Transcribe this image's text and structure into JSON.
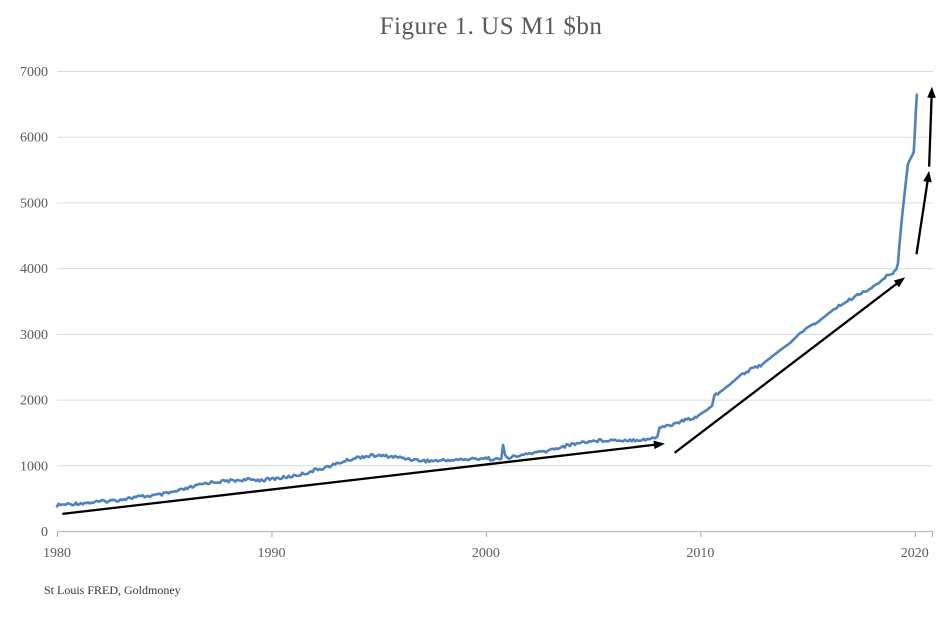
{
  "header": {
    "title": "Figure 1. US M1 $bn"
  },
  "footer": {
    "source": "St Louis FRED, Goldmoney"
  },
  "chart_data": {
    "type": "line",
    "title": "Figure 1. US M1 $bn",
    "source": "St Louis FRED, Goldmoney",
    "xlabel": "",
    "ylabel": "",
    "xlim": [
      1980,
      2020.85
    ],
    "ylim": [
      0,
      7000
    ],
    "x_ticks": [
      "1980",
      "1990",
      "2000",
      "2010",
      "2020"
    ],
    "x_tick_years": [
      1980,
      1990,
      2000,
      2010,
      2020
    ],
    "y_ticks": [
      "0",
      "1000",
      "2000",
      "3000",
      "4000",
      "5000",
      "6000",
      "7000"
    ],
    "y_tick_values": [
      0,
      1000,
      2000,
      3000,
      4000,
      5000,
      6000,
      7000
    ],
    "grid": "horizontal-only",
    "legend": "none",
    "colors": {
      "line": "#4f81bd",
      "arrow": "#000000",
      "grid": "#dcdcdc",
      "axis": "#bfbfbf",
      "tick": "#a6a6a6",
      "labels": "#595959",
      "title": "#595959",
      "source": "#333333"
    },
    "series": [
      {
        "name": "US M1 $bn",
        "color": "#4f81bd",
        "points": [
          [
            1980.0,
            393
          ],
          [
            1980.4,
            403
          ],
          [
            1980.8,
            415
          ],
          [
            1981.2,
            425
          ],
          [
            1981.6,
            433
          ],
          [
            1982.0,
            447
          ],
          [
            1982.4,
            458
          ],
          [
            1982.8,
            470
          ],
          [
            1983.2,
            492
          ],
          [
            1983.6,
            513
          ],
          [
            1984.0,
            525
          ],
          [
            1984.4,
            536
          ],
          [
            1984.8,
            550
          ],
          [
            1985.2,
            575
          ],
          [
            1985.6,
            605
          ],
          [
            1986.0,
            640
          ],
          [
            1986.4,
            678
          ],
          [
            1986.8,
            715
          ],
          [
            1987.2,
            742
          ],
          [
            1987.6,
            752
          ],
          [
            1988.0,
            762
          ],
          [
            1988.4,
            772
          ],
          [
            1988.8,
            780
          ],
          [
            1989.2,
            780
          ],
          [
            1989.6,
            776
          ],
          [
            1990.0,
            792
          ],
          [
            1990.4,
            806
          ],
          [
            1990.8,
            825
          ],
          [
            1991.2,
            850
          ],
          [
            1991.6,
            880
          ],
          [
            1992.0,
            925
          ],
          [
            1992.4,
            958
          ],
          [
            1992.8,
            995
          ],
          [
            1993.2,
            1040
          ],
          [
            1993.6,
            1082
          ],
          [
            1994.0,
            1118
          ],
          [
            1994.4,
            1138
          ],
          [
            1994.8,
            1148
          ],
          [
            1995.2,
            1143
          ],
          [
            1995.6,
            1133
          ],
          [
            1996.0,
            1118
          ],
          [
            1996.4,
            1098
          ],
          [
            1996.8,
            1078
          ],
          [
            1997.2,
            1068
          ],
          [
            1997.6,
            1067
          ],
          [
            1998.0,
            1075
          ],
          [
            1998.4,
            1080
          ],
          [
            1998.8,
            1086
          ],
          [
            1999.2,
            1092
          ],
          [
            1999.6,
            1100
          ],
          [
            1999.9,
            1112
          ],
          [
            2000.2,
            1098
          ],
          [
            2000.5,
            1092
          ],
          [
            2000.72,
            1098
          ],
          [
            2000.8,
            1310
          ],
          [
            2000.9,
            1130
          ],
          [
            2001.2,
            1122
          ],
          [
            2001.6,
            1145
          ],
          [
            2002.0,
            1180
          ],
          [
            2002.4,
            1195
          ],
          [
            2002.8,
            1212
          ],
          [
            2003.2,
            1252
          ],
          [
            2003.6,
            1285
          ],
          [
            2004.0,
            1318
          ],
          [
            2004.4,
            1345
          ],
          [
            2004.8,
            1362
          ],
          [
            2005.2,
            1375
          ],
          [
            2005.6,
            1382
          ],
          [
            2006.0,
            1385
          ],
          [
            2006.4,
            1382
          ],
          [
            2006.8,
            1385
          ],
          [
            2007.2,
            1390
          ],
          [
            2007.6,
            1398
          ],
          [
            2007.9,
            1412
          ],
          [
            2008.0,
            1440
          ],
          [
            2008.1,
            1580
          ],
          [
            2008.4,
            1600
          ],
          [
            2008.7,
            1618
          ],
          [
            2009.0,
            1655
          ],
          [
            2009.3,
            1690
          ],
          [
            2009.6,
            1712
          ],
          [
            2009.9,
            1755
          ],
          [
            2010.1,
            1800
          ],
          [
            2010.3,
            1840
          ],
          [
            2010.45,
            1880
          ],
          [
            2010.55,
            1905
          ],
          [
            2010.65,
            2070
          ],
          [
            2010.9,
            2110
          ],
          [
            2011.1,
            2160
          ],
          [
            2011.4,
            2235
          ],
          [
            2011.9,
            2380
          ],
          [
            2012.4,
            2462
          ],
          [
            2012.9,
            2540
          ],
          [
            2013.3,
            2645
          ],
          [
            2013.8,
            2770
          ],
          [
            2014.2,
            2865
          ],
          [
            2014.7,
            3030
          ],
          [
            2015.1,
            3105
          ],
          [
            2015.5,
            3185
          ],
          [
            2015.9,
            3290
          ],
          [
            2016.3,
            3395
          ],
          [
            2016.7,
            3465
          ],
          [
            2017.1,
            3545
          ],
          [
            2017.5,
            3625
          ],
          [
            2017.9,
            3685
          ],
          [
            2018.3,
            3765
          ],
          [
            2018.6,
            3855
          ],
          [
            2018.9,
            3920
          ],
          [
            2019.05,
            3955
          ],
          [
            2019.15,
            3985
          ],
          [
            2019.22,
            4080
          ],
          [
            2019.3,
            4420
          ],
          [
            2019.4,
            4760
          ],
          [
            2019.5,
            5070
          ],
          [
            2019.6,
            5360
          ],
          [
            2019.68,
            5580
          ],
          [
            2019.78,
            5655
          ],
          [
            2019.88,
            5715
          ],
          [
            2019.95,
            5765
          ],
          [
            2020.0,
            6050
          ],
          [
            2020.05,
            6380
          ],
          [
            2020.1,
            6640
          ]
        ]
      }
    ],
    "annotations": {
      "arrows": [
        {
          "from": [
            1980.25,
            260
          ],
          "to": [
            2008.35,
            1330
          ],
          "desc": "trend arrow 1980 to 2008"
        },
        {
          "from": [
            2008.8,
            1190
          ],
          "to": [
            2019.55,
            3860
          ],
          "desc": "trend arrow 2009 to 2019"
        },
        {
          "from": [
            2020.08,
            4210
          ],
          "to": [
            2020.67,
            5480
          ],
          "desc": "acceleration arrow 2020 lower"
        },
        {
          "from": [
            2020.67,
            5545
          ],
          "to": [
            2020.8,
            6760
          ],
          "desc": "acceleration arrow 2020 upper"
        }
      ]
    }
  }
}
